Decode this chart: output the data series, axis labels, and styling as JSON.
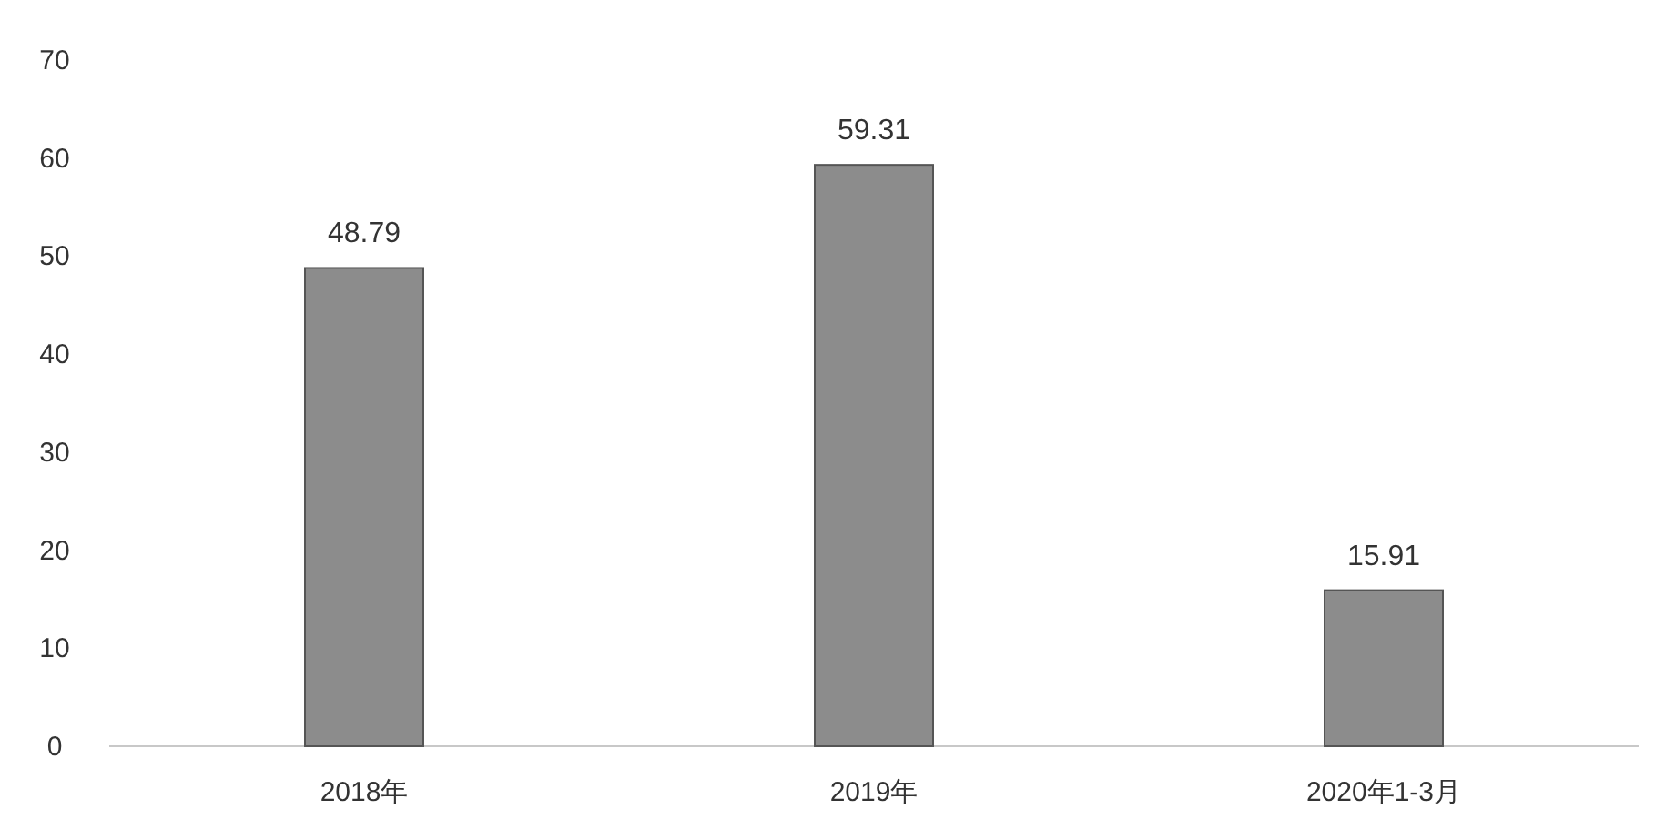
{
  "chart_data": {
    "type": "bar",
    "categories": [
      "2018年",
      "2019年",
      "2020年1-3月"
    ],
    "values": [
      48.79,
      59.31,
      15.91
    ],
    "color": "#8c8c8c",
    "ylim": [
      0,
      70
    ],
    "yticks": [
      0,
      10,
      20,
      30,
      40,
      50,
      60,
      70
    ],
    "data_labels": true
  }
}
